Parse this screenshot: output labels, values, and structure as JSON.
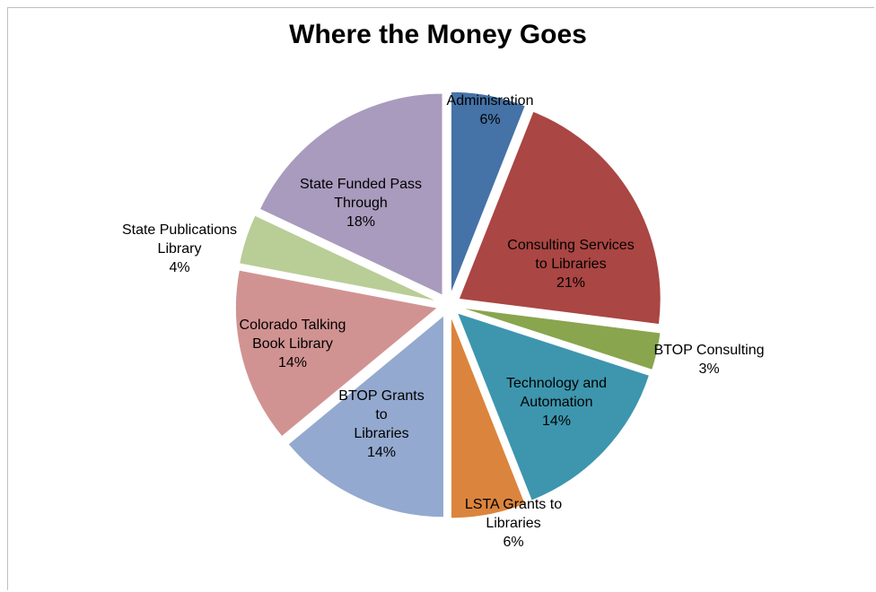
{
  "chart_data": {
    "type": "pie",
    "title": "Where the Money Goes",
    "unit": "%",
    "exploded": true,
    "slices": [
      {
        "label": "Adminisration",
        "value": 6,
        "color": "#4572A7"
      },
      {
        "label": "Consulting Services to Libraries",
        "value": 21,
        "color": "#AA4643"
      },
      {
        "label": "BTOP Consulting",
        "value": 3,
        "color": "#89A54E"
      },
      {
        "label": "Technology and Automation",
        "value": 14,
        "color": "#3D96AE"
      },
      {
        "label": "LSTA Grants to Libraries",
        "value": 6,
        "color": "#DB843D"
      },
      {
        "label": "BTOP Grants to Libraries",
        "value": 14,
        "color": "#93A9CF"
      },
      {
        "label": "Colorado Talking Book Library",
        "value": 14,
        "color": "#D19392"
      },
      {
        "label": "State Publications Library",
        "value": 4,
        "color": "#B9CD96"
      },
      {
        "label": "State Funded Pass Through",
        "value": 18,
        "color": "#A99BBD"
      }
    ]
  }
}
